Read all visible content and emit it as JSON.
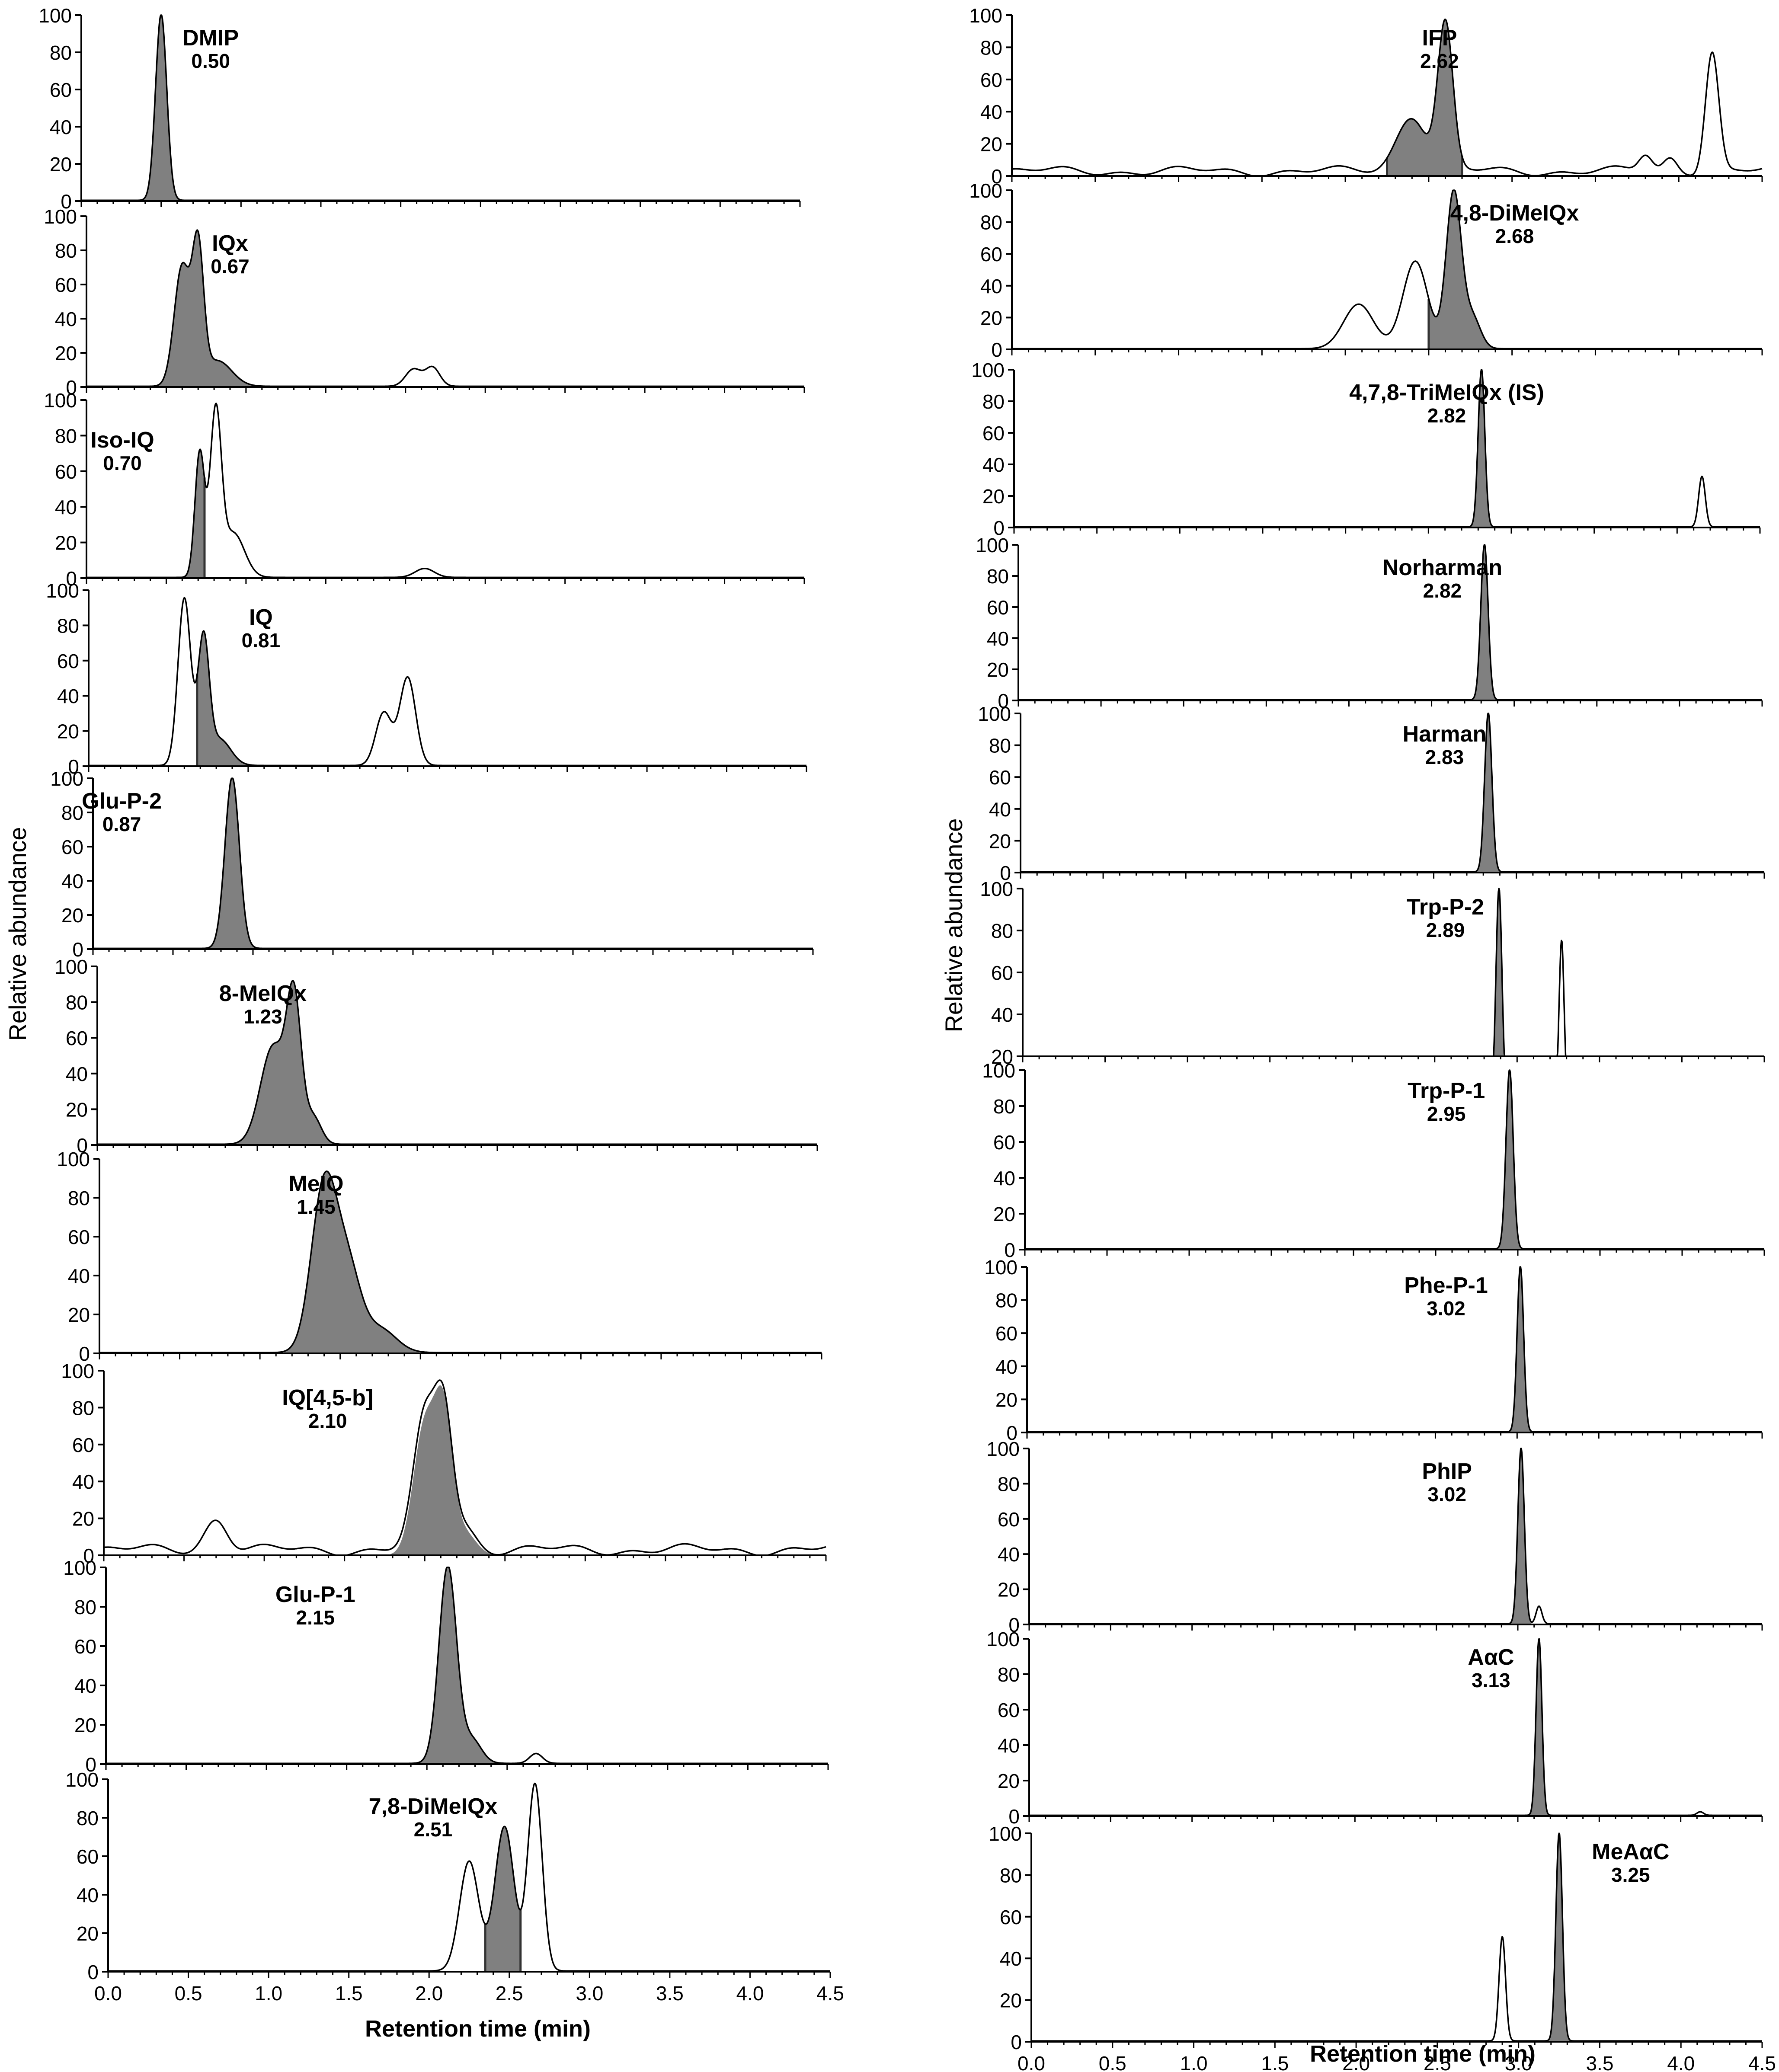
{
  "figure": {
    "left_ylabel": "Relative abundance",
    "right_ylabel": "Relative abundance",
    "left_xlabel": "Retention time (min)",
    "right_xlabel": "Retention time (min)",
    "colors": {
      "fill": "#808080",
      "line": "#000000",
      "axis": "#000000"
    }
  },
  "chart_data": [
    {
      "type": "area",
      "title": "DMIP",
      "label_value": "0.50",
      "xlim": [
        0,
        4.5
      ],
      "ylim": [
        0,
        100
      ],
      "yticks": [
        0,
        20,
        40,
        60,
        80,
        100
      ],
      "peaks": [
        {
          "center": 0.5,
          "width": 0.035,
          "height": 100,
          "fill": true
        }
      ]
    },
    {
      "type": "area",
      "title": "IQx",
      "label_value": "0.67",
      "xlim": [
        0,
        4.5
      ],
      "ylim": [
        0,
        100
      ],
      "yticks": [
        0,
        20,
        40,
        60,
        80,
        100
      ],
      "peaks": [
        {
          "center": 0.6,
          "width": 0.05,
          "height": 70,
          "fill": true
        },
        {
          "center": 0.7,
          "width": 0.035,
          "height": 75,
          "fill": true
        },
        {
          "center": 0.82,
          "width": 0.09,
          "height": 15,
          "fill": true
        },
        {
          "center": 2.05,
          "width": 0.05,
          "height": 10,
          "fill": false
        },
        {
          "center": 2.17,
          "width": 0.045,
          "height": 11,
          "fill": false
        }
      ]
    },
    {
      "type": "area",
      "title": "Iso-IQ",
      "label_value": "0.70",
      "xlim": [
        0,
        4.5
      ],
      "ylim": [
        0,
        100
      ],
      "yticks": [
        0,
        20,
        40,
        60,
        80,
        100
      ],
      "fill_range": [
        0.58,
        0.74
      ],
      "peaks": [
        {
          "center": 0.71,
          "width": 0.03,
          "height": 70
        },
        {
          "center": 0.81,
          "width": 0.035,
          "height": 90
        },
        {
          "center": 0.92,
          "width": 0.07,
          "height": 25
        },
        {
          "center": 2.12,
          "width": 0.06,
          "height": 5
        }
      ]
    },
    {
      "type": "area",
      "title": "IQ",
      "label_value": "0.81",
      "xlim": [
        0,
        4.5
      ],
      "ylim": [
        0,
        100
      ],
      "yticks": [
        0,
        20,
        40,
        60,
        80,
        100
      ],
      "fill_range": [
        0.68,
        1.15
      ],
      "peaks": [
        {
          "center": 0.6,
          "width": 0.04,
          "height": 95
        },
        {
          "center": 0.72,
          "width": 0.035,
          "height": 70
        },
        {
          "center": 0.82,
          "width": 0.07,
          "height": 15
        },
        {
          "center": 1.85,
          "width": 0.05,
          "height": 30
        },
        {
          "center": 2.0,
          "width": 0.05,
          "height": 50
        }
      ]
    },
    {
      "type": "area",
      "title": "Glu-P-2",
      "label_value": "0.87",
      "xlim": [
        0,
        4.5
      ],
      "ylim": [
        0,
        100
      ],
      "yticks": [
        0,
        20,
        40,
        60,
        80,
        100
      ],
      "peaks": [
        {
          "center": 0.87,
          "width": 0.045,
          "height": 100,
          "fill": true
        }
      ]
    },
    {
      "type": "area",
      "title": "8-MeIQx",
      "label_value": "1.23",
      "xlim": [
        0,
        4.5
      ],
      "ylim": [
        0,
        100
      ],
      "yticks": [
        0,
        20,
        40,
        60,
        80,
        100
      ],
      "peaks": [
        {
          "center": 1.1,
          "width": 0.08,
          "height": 55,
          "fill": true
        },
        {
          "center": 1.23,
          "width": 0.045,
          "height": 75,
          "fill": true
        },
        {
          "center": 1.35,
          "width": 0.05,
          "height": 15,
          "fill": true
        }
      ]
    },
    {
      "type": "area",
      "title": "MeIQ",
      "label_value": "1.45",
      "xlim": [
        0,
        4.5
      ],
      "ylim": [
        0,
        100
      ],
      "yticks": [
        0,
        20,
        40,
        60,
        80,
        100
      ],
      "peaks": [
        {
          "center": 1.4,
          "width": 0.08,
          "height": 85,
          "fill": true
        },
        {
          "center": 1.55,
          "width": 0.08,
          "height": 40,
          "fill": true
        },
        {
          "center": 1.75,
          "width": 0.1,
          "height": 12,
          "fill": true
        }
      ]
    },
    {
      "type": "area",
      "title": "IQ[4,5-b]",
      "label_value": "2.10",
      "xlim": [
        0,
        4.5
      ],
      "ylim": [
        0,
        100
      ],
      "yticks": [
        0,
        20,
        40,
        60,
        80,
        100
      ],
      "baseline_noise": true,
      "peaks": [
        {
          "center": 0.7,
          "width": 0.07,
          "height": 17,
          "fill": false
        },
        {
          "center": 2.0,
          "width": 0.07,
          "height": 70,
          "fill": true
        },
        {
          "center": 2.12,
          "width": 0.055,
          "height": 70,
          "fill": true
        },
        {
          "center": 2.25,
          "width": 0.07,
          "height": 12,
          "fill": true
        }
      ]
    },
    {
      "type": "area",
      "title": "Glu-P-1",
      "label_value": "2.15",
      "xlim": [
        0,
        4.5
      ],
      "ylim": [
        0,
        100
      ],
      "yticks": [
        0,
        20,
        40,
        60,
        80,
        100
      ],
      "peaks": [
        {
          "center": 2.13,
          "width": 0.055,
          "height": 100,
          "fill": true
        },
        {
          "center": 2.28,
          "width": 0.06,
          "height": 12,
          "fill": true
        },
        {
          "center": 2.68,
          "width": 0.04,
          "height": 5,
          "fill": false
        }
      ]
    },
    {
      "type": "area",
      "title": "7,8-DiMeIQx",
      "label_value": "2.51",
      "xlim": [
        0,
        4.5
      ],
      "ylim": [
        0,
        100
      ],
      "yticks": [
        0,
        20,
        40,
        60,
        80,
        100
      ],
      "fill_range": [
        2.35,
        2.57
      ],
      "show_xaxis": true,
      "xticks": [
        0.0,
        0.5,
        1.0,
        1.5,
        2.0,
        2.5,
        3.0,
        3.5,
        4.0,
        4.5
      ],
      "xtick_labels": [
        "0.0",
        "0.5",
        "1.0",
        "1.5",
        "2.0",
        "2.5",
        "3.0",
        "3.5",
        "4.0",
        "4.5"
      ],
      "peaks": [
        {
          "center": 2.25,
          "width": 0.06,
          "height": 57
        },
        {
          "center": 2.47,
          "width": 0.06,
          "height": 75
        },
        {
          "center": 2.66,
          "width": 0.045,
          "height": 97
        }
      ]
    },
    {
      "type": "area",
      "title": "IFP",
      "label_value": "2.62",
      "xlim": [
        0,
        4.5
      ],
      "ylim": [
        0,
        100
      ],
      "yticks": [
        0,
        20,
        40,
        60,
        80,
        100
      ],
      "baseline_noise": true,
      "fill_range": [
        2.25,
        2.7
      ],
      "peaks": [
        {
          "center": 2.4,
          "width": 0.09,
          "height": 35
        },
        {
          "center": 2.6,
          "width": 0.045,
          "height": 90
        },
        {
          "center": 4.2,
          "width": 0.04,
          "height": 75
        },
        {
          "center": 3.8,
          "width": 0.04,
          "height": 10
        },
        {
          "center": 3.95,
          "width": 0.04,
          "height": 8
        }
      ]
    },
    {
      "type": "area",
      "title": "4,8-DiMeIQx",
      "label_value": "2.68",
      "xlim": [
        0,
        4.5
      ],
      "ylim": [
        0,
        100
      ],
      "yticks": [
        0,
        20,
        40,
        60,
        80,
        100
      ],
      "fill_range": [
        2.5,
        2.9
      ],
      "peaks": [
        {
          "center": 2.08,
          "width": 0.09,
          "height": 28
        },
        {
          "center": 2.42,
          "width": 0.075,
          "height": 55
        },
        {
          "center": 2.65,
          "width": 0.045,
          "height": 98
        },
        {
          "center": 2.76,
          "width": 0.05,
          "height": 20
        }
      ]
    },
    {
      "type": "area",
      "title": "4,7,8-TriMeIQx (IS)",
      "label_value": "2.82",
      "xlim": [
        0,
        4.5
      ],
      "ylim": [
        0,
        100
      ],
      "yticks": [
        0,
        20,
        40,
        60,
        80,
        100
      ],
      "peaks": [
        {
          "center": 2.82,
          "width": 0.02,
          "height": 100,
          "fill": true
        },
        {
          "center": 4.15,
          "width": 0.02,
          "height": 32,
          "fill": false
        }
      ]
    },
    {
      "type": "area",
      "title": "Norharman",
      "label_value": "2.82",
      "xlim": [
        0,
        4.5
      ],
      "ylim": [
        0,
        100
      ],
      "yticks": [
        0,
        20,
        40,
        60,
        80,
        100
      ],
      "peaks": [
        {
          "center": 2.82,
          "width": 0.022,
          "height": 100,
          "fill": true
        }
      ]
    },
    {
      "type": "area",
      "title": "Harman",
      "label_value": "2.83",
      "xlim": [
        0,
        4.5
      ],
      "ylim": [
        0,
        100
      ],
      "yticks": [
        0,
        20,
        40,
        60,
        80,
        100
      ],
      "peaks": [
        {
          "center": 2.83,
          "width": 0.022,
          "height": 100,
          "fill": true
        }
      ]
    },
    {
      "type": "area",
      "title": "Trp-P-2",
      "label_value": "2.89",
      "xlim": [
        0,
        4.5
      ],
      "ylim": [
        20,
        100
      ],
      "yticks": [
        20,
        40,
        60,
        80,
        100
      ],
      "peaks": [
        {
          "center": 2.89,
          "width": 0.018,
          "height": 100,
          "fill": true
        },
        {
          "center": 3.27,
          "width": 0.015,
          "height": 75,
          "fill": false
        }
      ]
    },
    {
      "type": "area",
      "title": "Trp-P-1",
      "label_value": "2.95",
      "xlim": [
        0,
        4.5
      ],
      "ylim": [
        0,
        100
      ],
      "yticks": [
        0,
        20,
        40,
        60,
        80,
        100
      ],
      "peaks": [
        {
          "center": 2.95,
          "width": 0.022,
          "height": 100,
          "fill": true
        }
      ]
    },
    {
      "type": "area",
      "title": "Phe-P-1",
      "label_value": "3.02",
      "xlim": [
        0,
        4.5
      ],
      "ylim": [
        0,
        100
      ],
      "yticks": [
        0,
        20,
        40,
        60,
        80,
        100
      ],
      "peaks": [
        {
          "center": 3.02,
          "width": 0.02,
          "height": 100,
          "fill": true
        }
      ]
    },
    {
      "type": "area",
      "title": "PhIP",
      "label_value": "3.02",
      "xlim": [
        0,
        4.5
      ],
      "ylim": [
        0,
        100
      ],
      "yticks": [
        0,
        20,
        40,
        60,
        80,
        100
      ],
      "peaks": [
        {
          "center": 3.02,
          "width": 0.02,
          "height": 100,
          "fill": true
        },
        {
          "center": 3.13,
          "width": 0.018,
          "height": 10,
          "fill": false
        }
      ]
    },
    {
      "type": "area",
      "title": "AαC",
      "label_value": "3.13",
      "xlim": [
        0,
        4.5
      ],
      "ylim": [
        0,
        100
      ],
      "yticks": [
        0,
        20,
        40,
        60,
        80,
        100
      ],
      "peaks": [
        {
          "center": 3.13,
          "width": 0.018,
          "height": 100,
          "fill": true
        },
        {
          "center": 4.12,
          "width": 0.02,
          "height": 2,
          "fill": false
        }
      ]
    },
    {
      "type": "area",
      "title": "MeAαC",
      "label_value": "3.25",
      "xlim": [
        0,
        4.5
      ],
      "ylim": [
        0,
        100
      ],
      "yticks": [
        0,
        20,
        40,
        60,
        80,
        100
      ],
      "show_xaxis": true,
      "xticks": [
        0.0,
        0.5,
        1.0,
        1.5,
        2.0,
        2.5,
        3.0,
        3.5,
        4.0,
        4.5
      ],
      "xtick_labels": [
        "0.0",
        "0.5",
        "1.0",
        "1.5",
        "2.0",
        "2.5",
        "3.0",
        "3.5",
        "4.0",
        "4.5"
      ],
      "peaks": [
        {
          "center": 2.9,
          "width": 0.02,
          "height": 50,
          "fill": false
        },
        {
          "center": 3.25,
          "width": 0.02,
          "height": 100,
          "fill": true
        }
      ]
    }
  ]
}
